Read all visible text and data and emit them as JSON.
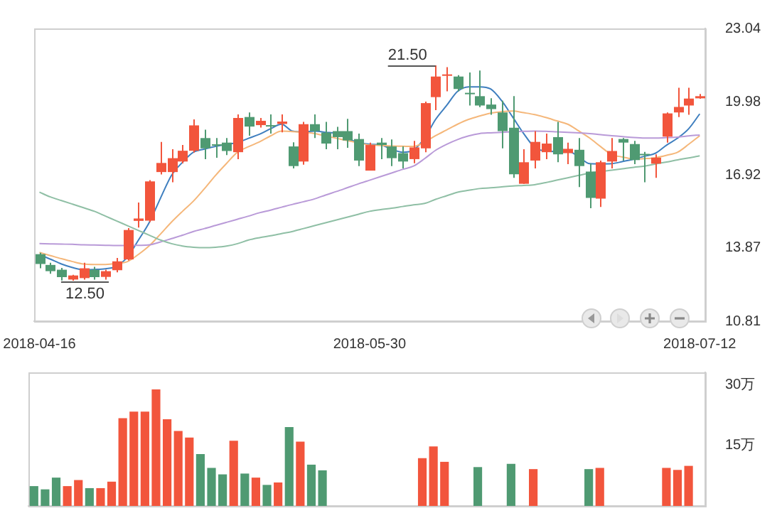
{
  "chart_data": [
    {
      "type": "candlestick",
      "categories": [
        "2018-04-16",
        null,
        null,
        null,
        null,
        null,
        null,
        null,
        null,
        null,
        null,
        null,
        null,
        null,
        null,
        null,
        null,
        null,
        null,
        null,
        null,
        null,
        null,
        null,
        null,
        null,
        null,
        null,
        null,
        null,
        "2018-05-30",
        null,
        null,
        null,
        null,
        null,
        null,
        null,
        null,
        null,
        null,
        null,
        null,
        null,
        null,
        null,
        null,
        null,
        null,
        null,
        null,
        null,
        null,
        null,
        null,
        null,
        null,
        null,
        null,
        null,
        "2018-07-12"
      ],
      "ohlc": [
        [
          13.61,
          13.67,
          13.02,
          13.2
        ],
        [
          13.16,
          13.25,
          12.79,
          12.9
        ],
        [
          12.96,
          13.04,
          12.51,
          12.65
        ],
        [
          12.55,
          12.75,
          12.5,
          12.72
        ],
        [
          12.61,
          13.25,
          12.55,
          13.02
        ],
        [
          12.96,
          13.08,
          12.55,
          12.65
        ],
        [
          12.66,
          12.96,
          12.55,
          12.9
        ],
        [
          12.94,
          13.45,
          12.85,
          13.31
        ],
        [
          13.39,
          14.7,
          13.35,
          14.62
        ],
        [
          15.0,
          15.77,
          14.72,
          15.1
        ],
        [
          15.01,
          16.7,
          14.95,
          16.65
        ],
        [
          17.04,
          18.3,
          16.94,
          17.42
        ],
        [
          17.04,
          17.99,
          16.61,
          17.62
        ],
        [
          17.48,
          18.17,
          17.4,
          17.93
        ],
        [
          17.93,
          19.24,
          17.85,
          18.99
        ],
        [
          18.46,
          18.81,
          17.58,
          18.03
        ],
        [
          18.2,
          18.46,
          17.64,
          18.15
        ],
        [
          18.27,
          18.46,
          17.75,
          17.92
        ],
        [
          17.87,
          19.45,
          17.58,
          19.3
        ],
        [
          19.34,
          19.53,
          18.56,
          18.94
        ],
        [
          19.0,
          19.3,
          18.9,
          19.18
        ],
        [
          19.0,
          19.45,
          18.65,
          18.95
        ],
        [
          19.05,
          19.45,
          18.7,
          19.15
        ],
        [
          18.11,
          18.28,
          17.19,
          17.29
        ],
        [
          17.48,
          19.14,
          17.35,
          19.04
        ],
        [
          19.04,
          19.45,
          18.46,
          18.75
        ],
        [
          18.69,
          19.14,
          17.99,
          18.23
        ],
        [
          18.75,
          18.93,
          17.99,
          18.5
        ],
        [
          18.75,
          19.26,
          18.05,
          18.36
        ],
        [
          18.42,
          18.65,
          17.29,
          17.52
        ],
        [
          17.1,
          18.27,
          17.1,
          18.17
        ],
        [
          18.27,
          18.46,
          17.58,
          18.17
        ],
        [
          18.11,
          18.4,
          17.29,
          17.62
        ],
        [
          17.83,
          18.11,
          17.19,
          17.48
        ],
        [
          17.58,
          18.34,
          17.41,
          18.07
        ],
        [
          18.03,
          19.98,
          17.87,
          19.92
        ],
        [
          20.17,
          21.5,
          19.63,
          21.03
        ],
        [
          21.06,
          21.42,
          20.41,
          21.12
        ],
        [
          21.03,
          21.09,
          20.41,
          20.51
        ],
        [
          20.35,
          21.2,
          19.82,
          20.3
        ],
        [
          20.21,
          21.28,
          19.75,
          19.82
        ],
        [
          19.86,
          20.12,
          19.43,
          19.67
        ],
        [
          19.53,
          20.02,
          18.03,
          18.75
        ],
        [
          18.89,
          20.21,
          16.8,
          16.95
        ],
        [
          16.55,
          17.99,
          16.55,
          17.45
        ],
        [
          17.52,
          18.75,
          17.19,
          18.3
        ],
        [
          17.87,
          18.65,
          17.58,
          18.23
        ],
        [
          18.5,
          19.14,
          17.45,
          17.78
        ],
        [
          17.83,
          18.27,
          17.37,
          18.01
        ],
        [
          17.97,
          18.46,
          16.41,
          17.29
        ],
        [
          17.06,
          17.39,
          15.53,
          15.96
        ],
        [
          15.93,
          17.52,
          15.58,
          17.45
        ],
        [
          17.48,
          18.46,
          17.19,
          17.92
        ],
        [
          18.42,
          18.46,
          17.52,
          18.27
        ],
        [
          18.21,
          18.34,
          17.37,
          17.54
        ],
        [
          17.8,
          17.88,
          16.61,
          17.78
        ],
        [
          17.39,
          17.78,
          16.8,
          17.64
        ],
        [
          18.52,
          19.53,
          18.27,
          19.49
        ],
        [
          19.53,
          20.56,
          19.34,
          19.76
        ],
        [
          19.82,
          20.56,
          19.43,
          20.11
        ],
        [
          20.12,
          20.3,
          20.1,
          20.21
        ]
      ],
      "colors": [
        "#4f9a72",
        "#4f9a72",
        "#4f9a72",
        "#f2553c",
        "#f2553c",
        "#4f9a72",
        "#f2553c",
        "#f2553c",
        "#f2553c",
        "#f2553c",
        "#f2553c",
        "#f2553c",
        "#f2553c",
        "#f2553c",
        "#f2553c",
        "#4f9a72",
        "#4f9a72",
        "#4f9a72",
        "#f2553c",
        "#4f9a72",
        "#f2553c",
        "#4f9a72",
        "#f2553c",
        "#4f9a72",
        "#f2553c",
        "#4f9a72",
        "#4f9a72",
        "#4f9a72",
        "#4f9a72",
        "#4f9a72",
        "#f2553c",
        "#4f9a72",
        "#4f9a72",
        "#4f9a72",
        "#f2553c",
        "#f2553c",
        "#f2553c",
        "#f2553c",
        "#4f9a72",
        "#4f9a72",
        "#4f9a72",
        "#4f9a72",
        "#4f9a72",
        "#4f9a72",
        "#f2553c",
        "#f2553c",
        "#f2553c",
        "#4f9a72",
        "#f2553c",
        "#4f9a72",
        "#4f9a72",
        "#f2553c",
        "#f2553c",
        "#4f9a72",
        "#4f9a72",
        "#4f9a72",
        "#f2553c",
        "#f2553c",
        "#f2553c",
        "#f2553c",
        "#f2553c"
      ],
      "series": [
        {
          "type": "line",
          "color": "#8fbfa5",
          "values": [
            16.2,
            16.0,
            15.85,
            15.7,
            15.55,
            15.4,
            15.2,
            15.0,
            14.8,
            14.6,
            14.4,
            14.2,
            14.05,
            13.95,
            13.9,
            13.88,
            13.9,
            13.95,
            14.05,
            14.2,
            14.3,
            14.38,
            14.47,
            14.56,
            14.68,
            14.8,
            14.92,
            15.04,
            15.16,
            15.28,
            15.4,
            15.47,
            15.53,
            15.6,
            15.67,
            15.73,
            15.9,
            16.05,
            16.2,
            16.28,
            16.35,
            16.38,
            16.42,
            16.46,
            16.48,
            16.51,
            16.6,
            16.7,
            16.8,
            16.9,
            17.0,
            17.06,
            17.12,
            17.18,
            17.24,
            17.29,
            17.38,
            17.46,
            17.55,
            17.63,
            17.72
          ]
        },
        {
          "type": "line",
          "color": "#b99ad8",
          "values": [
            14.05,
            14.04,
            14.03,
            14.02,
            14.0,
            13.99,
            13.98,
            13.97,
            13.97,
            13.98,
            14.0,
            14.12,
            14.26,
            14.4,
            14.56,
            14.68,
            14.81,
            14.94,
            15.07,
            15.2,
            15.34,
            15.45,
            15.57,
            15.69,
            15.8,
            15.92,
            16.08,
            16.23,
            16.39,
            16.55,
            16.7,
            16.85,
            17.0,
            17.15,
            17.29,
            17.6,
            17.95,
            18.2,
            18.4,
            18.55,
            18.65,
            18.68,
            18.7,
            18.72,
            18.74,
            18.75,
            18.74,
            18.72,
            18.7,
            18.68,
            18.65,
            18.6,
            18.56,
            18.52,
            18.48,
            18.46,
            18.46,
            18.48,
            18.5,
            18.55,
            18.59
          ]
        },
        {
          "type": "line",
          "color": "#f5b77a",
          "values": [
            13.68,
            13.55,
            13.42,
            13.3,
            13.2,
            13.18,
            13.18,
            13.22,
            13.3,
            13.6,
            13.97,
            14.45,
            14.95,
            15.4,
            15.83,
            16.35,
            16.9,
            17.4,
            17.87,
            18.1,
            18.3,
            18.55,
            18.75,
            18.73,
            18.7,
            18.65,
            18.55,
            18.45,
            18.35,
            18.26,
            18.17,
            18.15,
            18.13,
            18.12,
            18.11,
            18.3,
            18.56,
            18.8,
            19.04,
            19.24,
            19.38,
            19.5,
            19.56,
            19.59,
            19.52,
            19.44,
            19.32,
            19.18,
            19.04,
            18.76,
            18.46,
            18.1,
            17.77,
            17.67,
            17.58,
            17.6,
            17.64,
            17.74,
            17.87,
            18.2,
            18.56
          ]
        },
        {
          "type": "line",
          "color": "#3f7fbf",
          "values": [
            13.59,
            13.4,
            13.2,
            13.05,
            12.96,
            12.97,
            13.0,
            13.1,
            13.49,
            14.2,
            14.95,
            15.95,
            16.9,
            17.45,
            17.87,
            18.0,
            18.11,
            18.2,
            18.27,
            18.45,
            18.62,
            18.85,
            19.04,
            18.75,
            18.72,
            18.75,
            18.7,
            18.65,
            18.45,
            18.27,
            18.2,
            18.17,
            18.0,
            17.87,
            17.97,
            18.46,
            19.24,
            19.82,
            20.41,
            20.6,
            20.6,
            20.51,
            20.02,
            19.34,
            18.65,
            18.07,
            17.92,
            17.9,
            17.92,
            17.68,
            17.39,
            17.38,
            17.39,
            17.48,
            17.58,
            17.7,
            17.83,
            18.17,
            18.46,
            18.85,
            19.47
          ]
        }
      ],
      "ylim": [
        10.81,
        23.04
      ],
      "yticks": [
        10.81,
        13.87,
        16.92,
        19.98,
        23.04
      ],
      "annotations": [
        "21.50",
        "12.50"
      ]
    },
    {
      "type": "bar",
      "categories": [
        null,
        null,
        null,
        null,
        null,
        null,
        null,
        null,
        null,
        null,
        null,
        null,
        null,
        null,
        null,
        null,
        null,
        null,
        null,
        null,
        null,
        null,
        null,
        null,
        null,
        null,
        null,
        null,
        null,
        null,
        null,
        null,
        null,
        null,
        null,
        null,
        null,
        null,
        null,
        null,
        null,
        null,
        null,
        null,
        null,
        null,
        null,
        null,
        null,
        null,
        null,
        null,
        null,
        null,
        null,
        null,
        null,
        null,
        null,
        null,
        null
      ],
      "values": [
        4.9,
        4.1,
        7.0,
        4.9,
        6.4,
        4.4,
        4.4,
        6.0,
        21.7,
        23.3,
        23.3,
        28.8,
        21.4,
        18.5,
        16.9,
        12.8,
        9.4,
        7.8,
        16.1,
        8.0,
        7.0,
        5.2,
        5.8,
        19.5,
        15.9,
        10.2,
        8.8,
        null,
        null,
        null,
        null,
        null,
        null,
        null,
        null,
        11.8,
        14.7,
        10.9,
        null,
        null,
        9.6,
        null,
        null,
        10.4,
        null,
        9.1,
        null,
        null,
        null,
        null,
        9.1,
        9.4,
        null,
        null,
        null,
        null,
        null,
        9.4,
        8.9,
        9.9,
        null
      ],
      "colors": [
        "#4f9a72",
        "#4f9a72",
        "#4f9a72",
        "#f2553c",
        "#f2553c",
        "#4f9a72",
        "#f2553c",
        "#f2553c",
        "#f2553c",
        "#f2553c",
        "#f2553c",
        "#f2553c",
        "#f2553c",
        "#f2553c",
        "#f2553c",
        "#4f9a72",
        "#4f9a72",
        "#4f9a72",
        "#f2553c",
        "#4f9a72",
        "#f2553c",
        "#4f9a72",
        "#f2553c",
        "#4f9a72",
        "#f2553c",
        "#4f9a72",
        "#4f9a72",
        "#4f9a72",
        "#4f9a72",
        "#4f9a72",
        "#f2553c",
        "#4f9a72",
        "#4f9a72",
        "#4f9a72",
        "#f2553c",
        "#f2553c",
        "#f2553c",
        "#f2553c",
        "#4f9a72",
        "#4f9a72",
        "#4f9a72",
        "#4f9a72",
        "#4f9a72",
        "#4f9a72",
        "#f2553c",
        "#f2553c",
        "#f2553c",
        "#4f9a72",
        "#f2553c",
        "#4f9a72",
        "#4f9a72",
        "#f2553c",
        "#f2553c",
        "#4f9a72",
        "#4f9a72",
        "#4f9a72",
        "#f2553c",
        "#f2553c",
        "#f2553c",
        "#f2553c",
        "#f2553c"
      ],
      "ylim": [
        0,
        33
      ],
      "yticks": [
        {
          "value": 15,
          "label": "15万"
        },
        {
          "value": 30,
          "label": "30万"
        }
      ],
      "tick_labels": "y"
    }
  ]
}
